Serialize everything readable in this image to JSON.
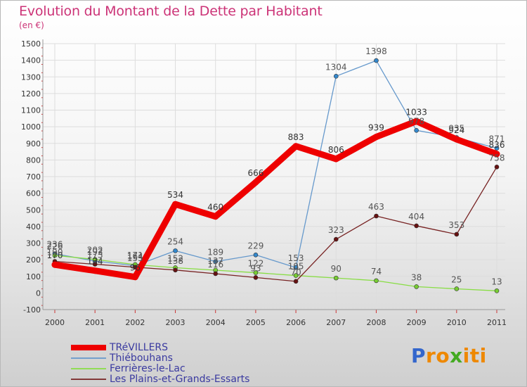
{
  "header": {
    "title": "Evolution du Montant de la Dette par Habitant",
    "subtitle": "(en €)"
  },
  "chart_data": {
    "type": "line",
    "title": "Evolution du Montant de la Dette par Habitant",
    "ylabel": "(en €)",
    "xlabel": "",
    "x": [
      "2000",
      "2001",
      "2002",
      "2003",
      "2004",
      "2005",
      "2006",
      "2007",
      "2008",
      "2009",
      "2010",
      "2011"
    ],
    "ylim": [
      -100,
      1500
    ],
    "yticks": [
      -100,
      0,
      100,
      200,
      300,
      400,
      500,
      600,
      700,
      800,
      900,
      1000,
      1100,
      1200,
      1300,
      1400,
      1500
    ],
    "grid": true,
    "legend_position": "bottom-left",
    "series": [
      {
        "name": "TRéVILLERS",
        "color": "#ee0000",
        "values": [
          170,
          134,
          96,
          534,
          460,
          666,
          883,
          806,
          939,
          1033,
          924,
          836
        ]
      },
      {
        "name": "Thiébouhans",
        "color": "#6699cc",
        "values": [
          236,
          192,
          164,
          254,
          189,
          229,
          153,
          1304,
          1398,
          978,
          935,
          871
        ]
      },
      {
        "name": "Ferrières-le-Lac",
        "color": "#88dd44",
        "values": [
          226,
          202,
          171,
          152,
          137,
          122,
          105,
          90,
          74,
          38,
          25,
          13
        ]
      },
      {
        "name": "Les Plains-et-Grands-Essarts",
        "color": "#772222",
        "values": [
          190,
          173,
          155,
          138,
          116,
          93,
          70,
          323,
          463,
          404,
          353,
          758
        ]
      }
    ]
  },
  "legend": {
    "items": [
      "TRéVILLERS",
      "Thiébouhans",
      "Ferrières-le-Lac",
      "Les Plains-et-Grands-Essarts"
    ]
  },
  "logo": {
    "letters": [
      "P",
      "r",
      "o",
      "x",
      "i",
      "t",
      "i"
    ],
    "colors": [
      "#3366cc",
      "#ee8800",
      "#ee8800",
      "#44aa22",
      "#ee8800",
      "#ee8800",
      "#ee8800"
    ]
  }
}
